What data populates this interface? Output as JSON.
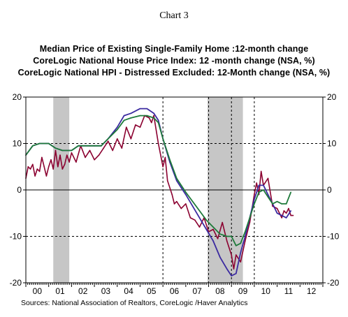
{
  "chart_data": {
    "type": "line",
    "title": "Chart 3",
    "x_tick_labels": [
      "00",
      "01",
      "02",
      "03",
      "04",
      "05",
      "06",
      "07",
      "08",
      "09",
      "10",
      "11",
      "12"
    ],
    "ylim": [
      -20,
      20
    ],
    "y_ticks": [
      20,
      10,
      0,
      -10,
      -20
    ],
    "y_tick_labels": [
      "20",
      "10",
      "0",
      "-10",
      "-20"
    ],
    "grid": "dashed vertical lines at 2000, 2006, 2008, 2009 and 2010; dashed horizontal lines at 10 and -10; solid zero line",
    "shaded_periods": [
      [
        2001.2,
        2001.9
      ],
      [
        2007.95,
        2009.5
      ]
    ],
    "series": [
      {
        "name": "Median Price of Existing Single-Family Home :12-month change",
        "color": "#8b0030",
        "x": [
          2000.0,
          2000.1,
          2000.2,
          2000.3,
          2000.4,
          2000.5,
          2000.6,
          2000.7,
          2000.8,
          2000.9,
          2001.0,
          2001.1,
          2001.2,
          2001.3,
          2001.4,
          2001.5,
          2001.6,
          2001.7,
          2001.8,
          2001.9,
          2002.0,
          2002.2,
          2002.4,
          2002.6,
          2002.8,
          2003.0,
          2003.2,
          2003.4,
          2003.6,
          2003.8,
          2004.0,
          2004.2,
          2004.4,
          2004.6,
          2004.8,
          2005.0,
          2005.2,
          2005.4,
          2005.5,
          2005.6,
          2005.8,
          2006.0,
          2006.1,
          2006.2,
          2006.4,
          2006.5,
          2006.6,
          2006.8,
          2007.0,
          2007.2,
          2007.4,
          2007.6,
          2007.8,
          2008.0,
          2008.2,
          2008.4,
          2008.6,
          2008.8,
          2009.0,
          2009.1,
          2009.2,
          2009.4,
          2009.6,
          2009.8,
          2010.0,
          2010.1,
          2010.2,
          2010.3,
          2010.4,
          2010.6,
          2010.8,
          2011.0,
          2011.2,
          2011.3,
          2011.4,
          2011.5,
          2011.6,
          2011.7
        ],
        "values": [
          2.5,
          5,
          4.5,
          5.5,
          3,
          4.5,
          4,
          7,
          5,
          3,
          5,
          6.5,
          4.5,
          8.5,
          5,
          7.5,
          4.5,
          5.5,
          7.5,
          6,
          8,
          6,
          9.5,
          7,
          8.5,
          6.5,
          7.5,
          9,
          10.5,
          8.5,
          11,
          9,
          13.5,
          11,
          14,
          13.5,
          16,
          15.5,
          14.5,
          16,
          10,
          5,
          7,
          2,
          -1,
          -3,
          -2.5,
          -4,
          -3,
          -6,
          -6.5,
          -8,
          -6,
          -9,
          -8.5,
          -10.5,
          -7,
          -11,
          -14,
          -17,
          -14,
          -15.5,
          -11,
          -7,
          -1,
          1.5,
          -1,
          4,
          1,
          2.5,
          -3.5,
          -4,
          -6,
          -4.5,
          -5,
          -4,
          -5.5,
          -5.5
        ]
      },
      {
        "name": "CoreLogic National House Price Index: 12 -month change (NSA, %)",
        "color": "#3b2aa0",
        "x": [
          2000.0,
          2000.3,
          2000.6,
          2000.9,
          2001.0,
          2001.3,
          2001.6,
          2001.8,
          2002.0,
          2002.3,
          2002.5,
          2002.8,
          2003.0,
          2003.3,
          2003.6,
          2004.0,
          2004.3,
          2004.6,
          2005.0,
          2005.3,
          2005.6,
          2005.8,
          2006.0,
          2006.3,
          2006.6,
          2006.8,
          2007.0,
          2007.3,
          2007.6,
          2007.9,
          2008.2,
          2008.5,
          2008.8,
          2009.0,
          2009.2,
          2009.4,
          2009.6,
          2009.8,
          2010.0,
          2010.2,
          2010.4,
          2010.6,
          2010.8,
          2011.0,
          2011.2,
          2011.4,
          2011.6
        ],
        "values": [
          7.5,
          9.5,
          10,
          10,
          10,
          9,
          8.5,
          8.5,
          8.5,
          9.5,
          9.5,
          9.5,
          9.5,
          9.5,
          11,
          13.5,
          16,
          16.5,
          17.5,
          17.5,
          16.5,
          15,
          11,
          6,
          2,
          0.5,
          -1,
          -3.5,
          -6,
          -8.5,
          -11,
          -14.5,
          -17,
          -18.5,
          -18,
          -13.5,
          -10,
          -6,
          -2,
          1,
          1,
          -1,
          -3,
          -5,
          -5.5,
          -6,
          -4.5
        ]
      },
      {
        "name": "CoreLogic National HPI - Distressed Excluded: 12-Month change (NSA, %)",
        "color": "#1e7a3a",
        "x": [
          2000.0,
          2000.3,
          2000.6,
          2000.9,
          2001.0,
          2001.3,
          2001.6,
          2001.8,
          2002.0,
          2002.3,
          2002.5,
          2002.8,
          2003.0,
          2003.3,
          2003.6,
          2004.0,
          2004.3,
          2004.6,
          2005.0,
          2005.3,
          2005.6,
          2005.8,
          2006.0,
          2006.3,
          2006.6,
          2006.8,
          2007.0,
          2007.3,
          2007.6,
          2007.9,
          2008.2,
          2008.5,
          2008.8,
          2009.0,
          2009.2,
          2009.4,
          2009.6,
          2009.8,
          2010.0,
          2010.2,
          2010.4,
          2010.6,
          2010.8,
          2011.0,
          2011.2,
          2011.4,
          2011.6
        ],
        "values": [
          7.5,
          9.5,
          10,
          10,
          10,
          9,
          8.5,
          8.5,
          8.5,
          9.5,
          9.5,
          9.5,
          9.5,
          9.5,
          11,
          13,
          15,
          15.5,
          16,
          16,
          15.5,
          14.5,
          11,
          6.5,
          2.5,
          1,
          -0.5,
          -2.5,
          -4.5,
          -6.5,
          -8,
          -9.5,
          -10,
          -10,
          -12,
          -11.5,
          -9,
          -6,
          -3,
          -0.5,
          0,
          -1.5,
          -3,
          -2.5,
          -3,
          -3,
          -0.5
        ]
      }
    ],
    "source": "Sources:  National Association of Realtors, CoreLogic /Haver Analytics"
  }
}
